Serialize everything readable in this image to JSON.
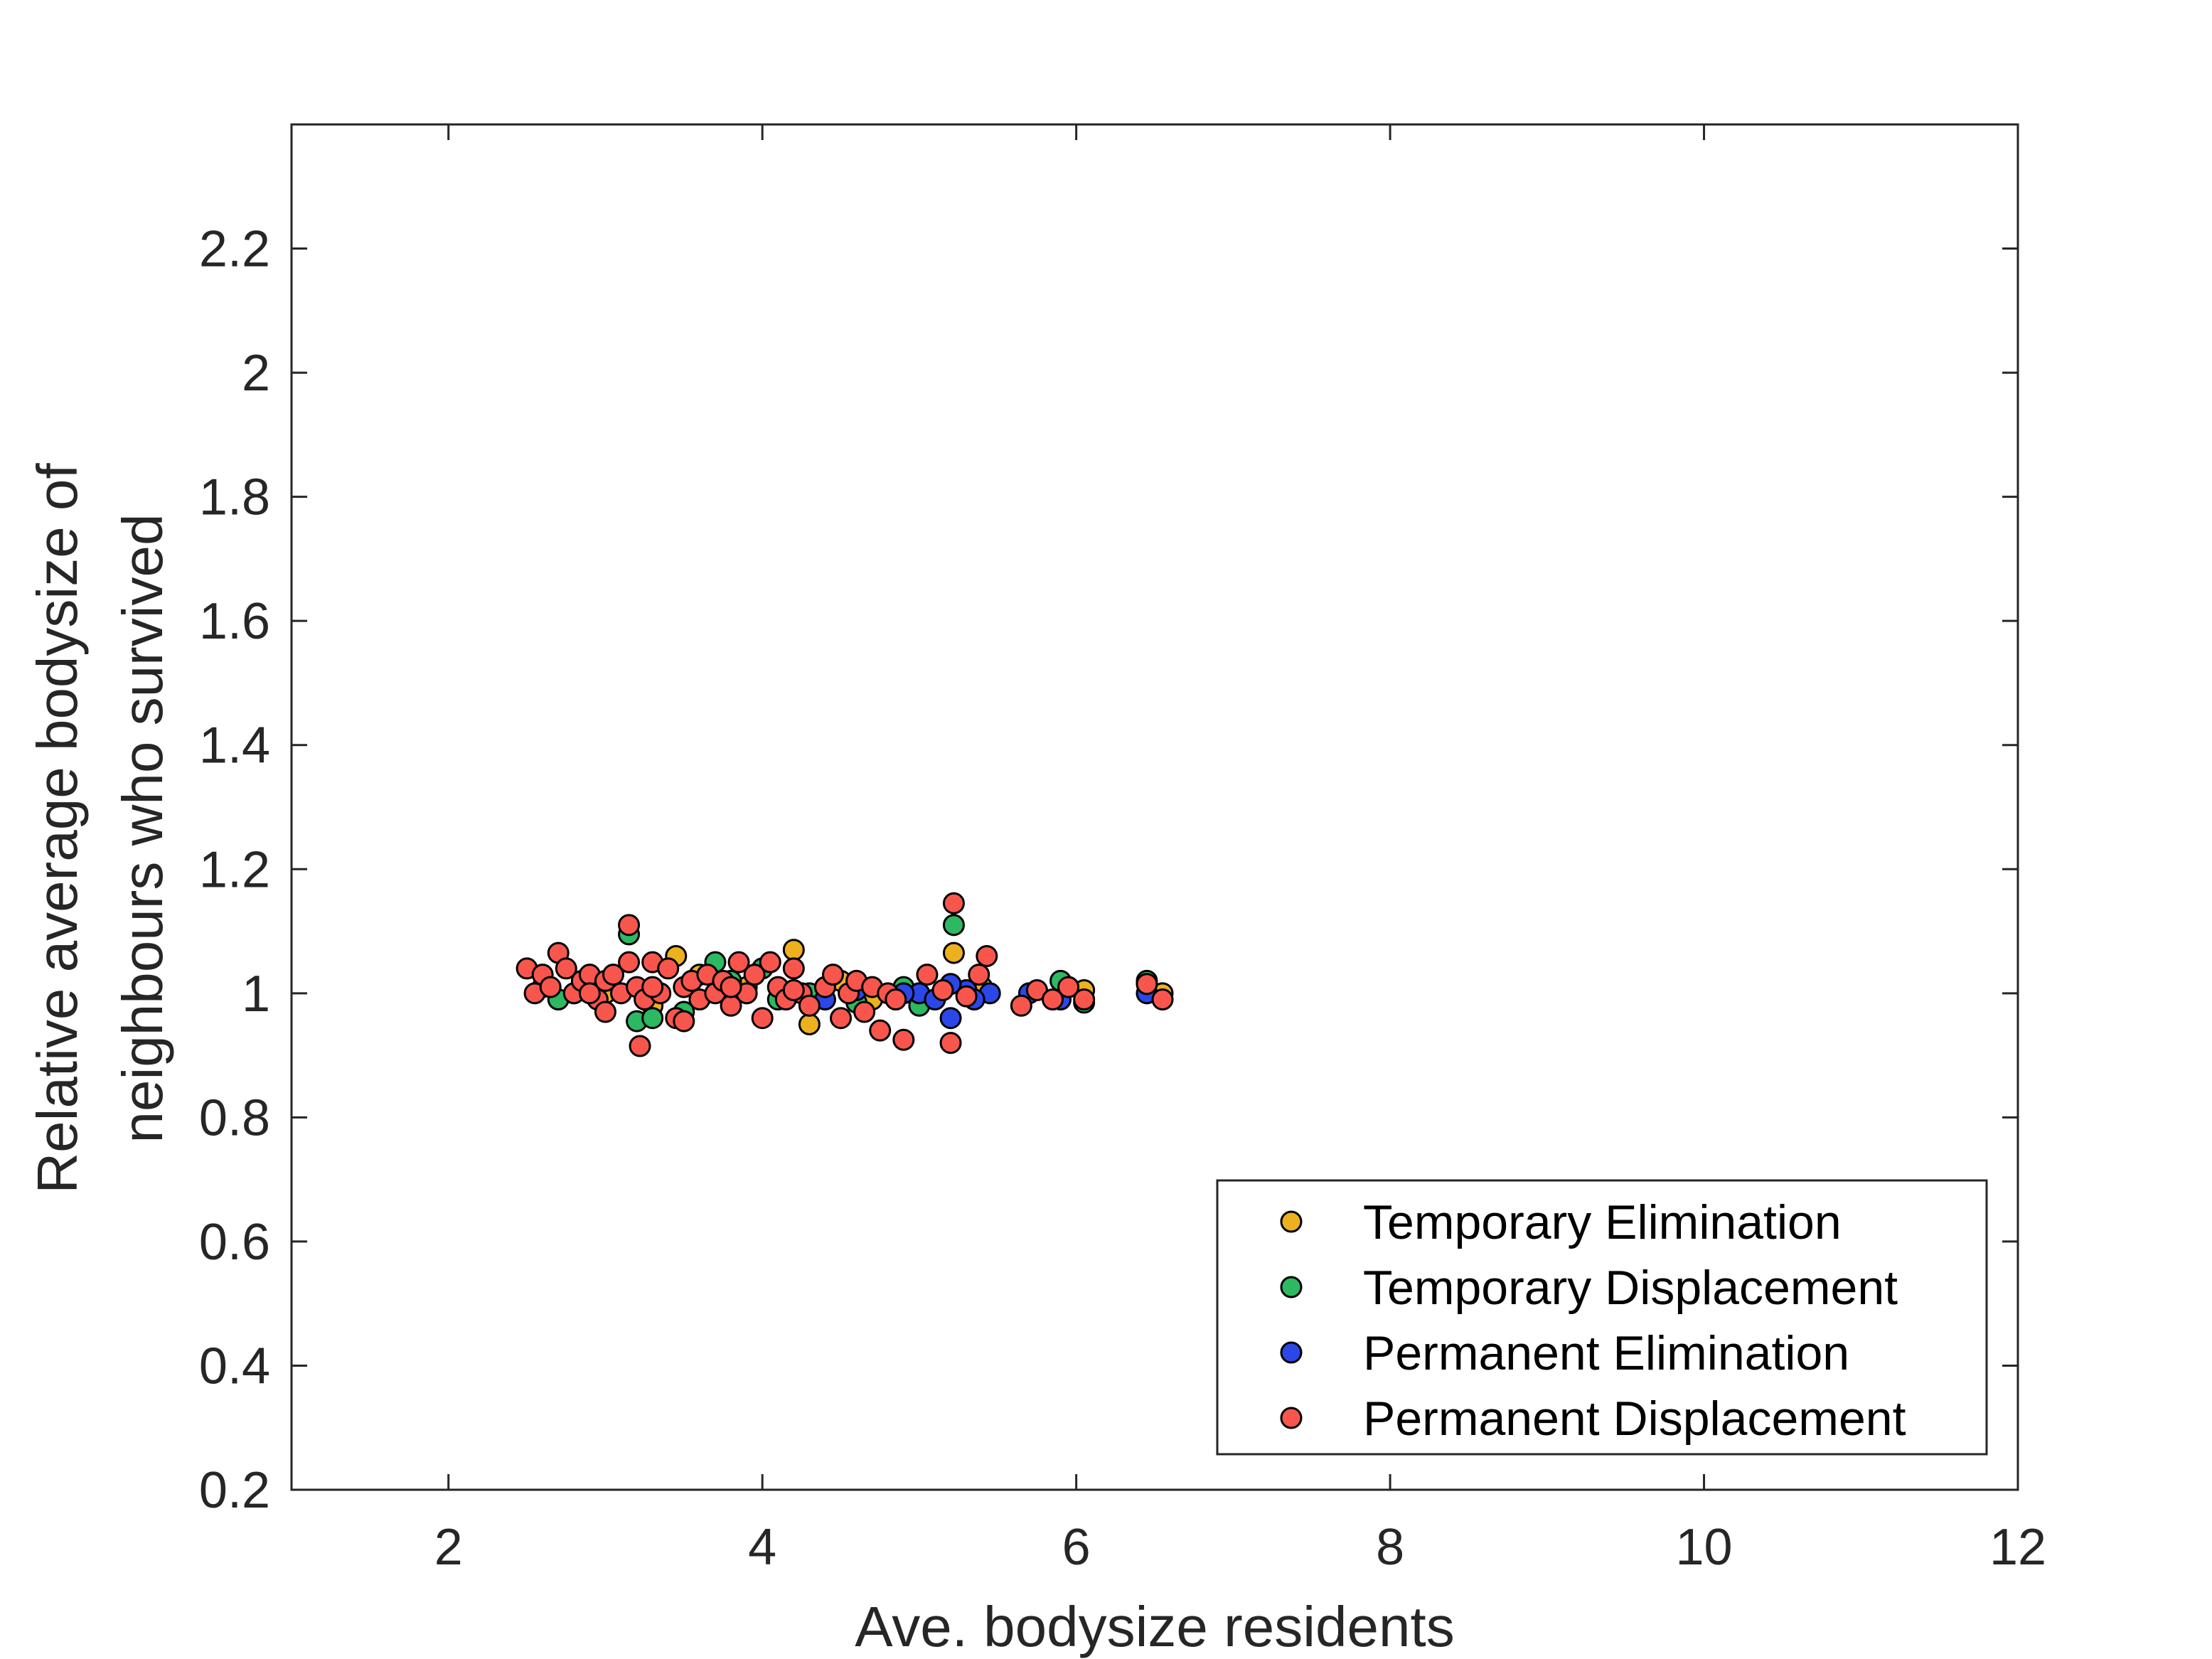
{
  "chart_data": {
    "type": "scatter",
    "title": "",
    "xlabel": "Ave. bodysize residents",
    "ylabel_lines": [
      "Relative average bodysize of",
      "neighbours who survived"
    ],
    "xlim": [
      1,
      12
    ],
    "ylim": [
      0.2,
      2.4
    ],
    "xticks": [
      2,
      4,
      6,
      8,
      10,
      12
    ],
    "yticks": [
      0.2,
      0.4,
      0.6,
      0.8,
      1,
      1.2,
      1.4,
      1.6,
      1.8,
      2,
      2.2
    ],
    "grid": false,
    "legend_position": "bottom-right",
    "series": [
      {
        "name": "Temporary Elimination",
        "color": "#EDB120",
        "points": [
          [
            3.45,
            1.06
          ],
          [
            4.2,
            1.07
          ],
          [
            5.22,
            1.065
          ],
          [
            4.3,
            0.95
          ],
          [
            3.6,
            1.03
          ],
          [
            3.0,
            1.0
          ],
          [
            3.9,
            1.01
          ],
          [
            4.7,
            0.99
          ],
          [
            5.0,
            1.0
          ],
          [
            5.95,
            1.01
          ],
          [
            6.05,
            1.005
          ],
          [
            6.55,
            1.0
          ],
          [
            5.4,
            1.01
          ],
          [
            3.3,
            0.98
          ],
          [
            2.6,
            1.01
          ],
          [
            4.5,
            1.02
          ]
        ]
      },
      {
        "name": "Temporary Displacement",
        "color": "#2DB862",
        "points": [
          [
            3.15,
            1.095
          ],
          [
            5.22,
            1.11
          ],
          [
            3.7,
            1.05
          ],
          [
            4.0,
            1.04
          ],
          [
            3.2,
            0.955
          ],
          [
            3.3,
            0.96
          ],
          [
            2.8,
            1.0
          ],
          [
            2.7,
            0.99
          ],
          [
            4.6,
            0.985
          ],
          [
            4.9,
            1.01
          ],
          [
            5.9,
            1.02
          ],
          [
            6.05,
            0.985
          ],
          [
            6.45,
            1.02
          ],
          [
            3.5,
            0.97
          ],
          [
            4.1,
            0.99
          ],
          [
            5.0,
            0.98
          ],
          [
            4.3,
            1.0
          ],
          [
            3.8,
            1.02
          ]
        ]
      },
      {
        "name": "Permanent Elimination",
        "color": "#2B47E8",
        "points": [
          [
            5.2,
            0.96
          ],
          [
            5.0,
            1.0
          ],
          [
            5.3,
            1.005
          ],
          [
            5.45,
            1.0
          ],
          [
            5.7,
            1.0
          ],
          [
            5.9,
            0.99
          ],
          [
            6.45,
            1.0
          ],
          [
            4.9,
            1.0
          ],
          [
            5.1,
            0.99
          ],
          [
            5.35,
            0.99
          ],
          [
            4.6,
            1.005
          ],
          [
            5.2,
            1.015
          ],
          [
            3.9,
            1.0
          ],
          [
            4.4,
            0.99
          ]
        ]
      },
      {
        "name": "Permanent Displacement",
        "color": "#F8564D",
        "points": [
          [
            3.15,
            1.11
          ],
          [
            5.22,
            1.145
          ],
          [
            3.22,
            0.915
          ],
          [
            5.2,
            0.92
          ],
          [
            2.7,
            1.065
          ],
          [
            5.43,
            1.06
          ],
          [
            4.9,
            0.925
          ],
          [
            2.5,
            1.04
          ],
          [
            2.55,
            1.0
          ],
          [
            2.6,
            1.03
          ],
          [
            2.65,
            1.01
          ],
          [
            2.75,
            1.04
          ],
          [
            2.8,
            1.0
          ],
          [
            2.85,
            1.02
          ],
          [
            2.9,
            1.03
          ],
          [
            2.95,
            0.99
          ],
          [
            3.0,
            1.02
          ],
          [
            3.05,
            1.03
          ],
          [
            3.1,
            1.0
          ],
          [
            3.15,
            1.05
          ],
          [
            3.2,
            1.01
          ],
          [
            3.25,
            0.99
          ],
          [
            3.3,
            1.05
          ],
          [
            3.35,
            1.0
          ],
          [
            3.4,
            1.04
          ],
          [
            3.45,
            0.96
          ],
          [
            3.5,
            1.01
          ],
          [
            3.55,
            1.02
          ],
          [
            3.6,
            0.99
          ],
          [
            3.65,
            1.03
          ],
          [
            3.7,
            1.0
          ],
          [
            3.75,
            1.02
          ],
          [
            3.8,
            0.98
          ],
          [
            3.85,
            1.05
          ],
          [
            3.9,
            1.0
          ],
          [
            3.95,
            1.03
          ],
          [
            4.0,
            0.96
          ],
          [
            4.05,
            1.05
          ],
          [
            4.1,
            1.01
          ],
          [
            4.15,
            0.99
          ],
          [
            4.2,
            1.04
          ],
          [
            4.25,
            1.0
          ],
          [
            4.3,
            0.98
          ],
          [
            4.4,
            1.01
          ],
          [
            4.45,
            1.03
          ],
          [
            4.5,
            0.96
          ],
          [
            4.55,
            1.0
          ],
          [
            4.6,
            1.02
          ],
          [
            4.65,
            0.97
          ],
          [
            4.7,
            1.01
          ],
          [
            4.75,
            0.94
          ],
          [
            4.8,
            1.0
          ],
          [
            4.85,
            0.99
          ],
          [
            5.05,
            1.03
          ],
          [
            5.15,
            1.005
          ],
          [
            5.3,
            0.995
          ],
          [
            5.38,
            1.03
          ],
          [
            5.75,
            1.005
          ],
          [
            5.65,
            0.98
          ],
          [
            5.95,
            1.01
          ],
          [
            5.85,
            0.99
          ],
          [
            6.05,
            0.99
          ],
          [
            6.45,
            1.015
          ],
          [
            6.55,
            0.99
          ],
          [
            3.0,
            0.97
          ],
          [
            3.5,
            0.955
          ],
          [
            4.2,
            1.005
          ],
          [
            2.9,
            1.0
          ],
          [
            3.3,
            1.01
          ],
          [
            3.8,
            1.01
          ]
        ]
      }
    ]
  }
}
